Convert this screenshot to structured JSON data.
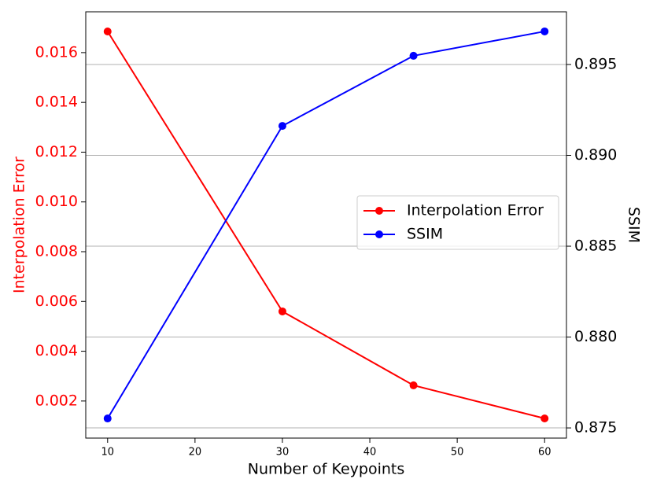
{
  "chart_data": {
    "type": "line",
    "x": [
      10,
      30,
      45,
      60
    ],
    "xlabel": "Number of Keypoints",
    "ylabel": "Interpolation Error",
    "y2label": "SSIM",
    "xlim": [
      7.5,
      62.5
    ],
    "xticks": [
      10,
      20,
      30,
      40,
      50,
      60
    ],
    "ylim": [
      0.00051,
      0.01764
    ],
    "yticks": [
      0.002,
      0.004,
      0.006,
      0.008,
      {
        "value": 0.01,
        "label": "0.010"
      },
      0.012,
      0.014,
      0.016
    ],
    "y2lim": [
      0.87444,
      0.8979
    ],
    "y2ticks": [
      0.875,
      {
        "value": 0.88,
        "label": "0.880"
      },
      0.885,
      {
        "value": 0.89,
        "label": "0.890"
      },
      0.895
    ],
    "grid": "y2",
    "legend": "center right",
    "series": [
      {
        "name": "Interpolation Error",
        "color": "#ff0000",
        "values": [
          0.01685,
          0.0056,
          0.00263,
          0.0013
        ]
      },
      {
        "name": "SSIM",
        "color": "#0000ff",
        "axis": "y2",
        "values": [
          0.87552,
          0.89162,
          0.89548,
          0.89682
        ]
      }
    ]
  }
}
